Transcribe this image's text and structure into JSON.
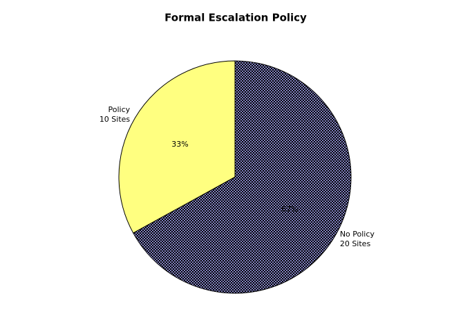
{
  "chart_data": {
    "type": "pie",
    "title": "Formal Escalation Policy",
    "categories": [
      "Policy",
      "No Policy"
    ],
    "sublabels": [
      "10 Sites",
      "20 Sites"
    ],
    "values": [
      33,
      67
    ],
    "value_labels": [
      "33%",
      "67%"
    ],
    "colors": [
      "#ffff80",
      "#8080c0"
    ]
  }
}
